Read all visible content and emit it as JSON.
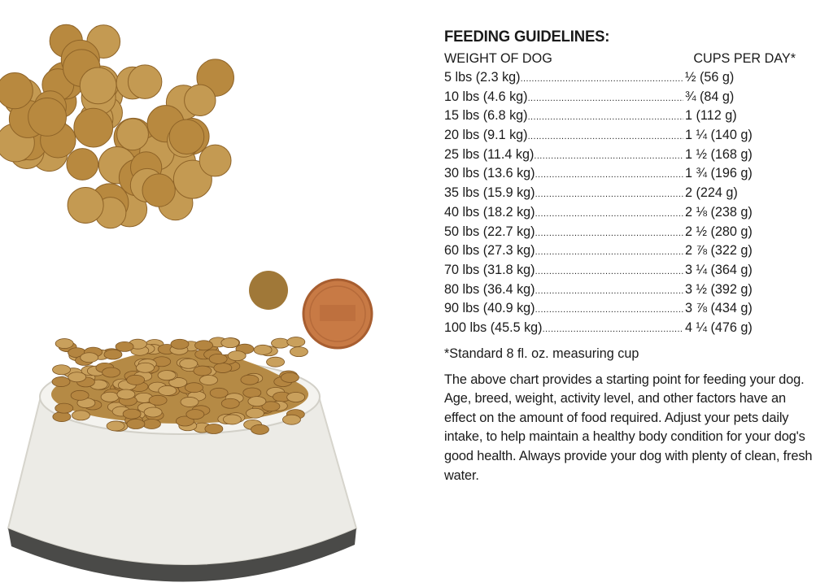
{
  "guidelines": {
    "title": "FEEDING GUIDELINES:",
    "header_weight": "WEIGHT OF DOG",
    "header_cups": "CUPS PER DAY*",
    "rows": [
      {
        "weight": "5 lbs (2.3 kg)",
        "cups": "½ (56 g)"
      },
      {
        "weight": "10 lbs (4.6 kg)",
        "cups": "¾ (84 g)"
      },
      {
        "weight": "15 lbs (6.8 kg)",
        "cups": "1 (112 g)"
      },
      {
        "weight": "20 lbs (9.1 kg)",
        "cups": "1 ¼ (140 g)"
      },
      {
        "weight": "25 lbs (11.4 kg)",
        "cups": "1 ½ (168 g)"
      },
      {
        "weight": "30 lbs (13.6 kg)",
        "cups": "1 ¾ (196 g)"
      },
      {
        "weight": "35 lbs (15.9 kg)",
        "cups": "2 (224 g)"
      },
      {
        "weight": "40 lbs (18.2 kg)",
        "cups": "2 ⅛ (238 g)"
      },
      {
        "weight": "50 lbs (22.7 kg)",
        "cups": "2 ½ (280 g)"
      },
      {
        "weight": "60 lbs (27.3 kg)",
        "cups": "2 ⅞ (322 g)"
      },
      {
        "weight": "70 lbs (31.8 kg)",
        "cups": "3 ¼ (364 g)"
      },
      {
        "weight": "80 lbs (36.4 kg)",
        "cups": "3 ½ (392 g)"
      },
      {
        "weight": "90 lbs (40.9 kg)",
        "cups": "3 ⅞ (434 g)"
      },
      {
        "weight": "100 lbs (45.5 kg)",
        "cups": "4 ¼ (476 g)"
      }
    ],
    "footnote": "*Standard 8 fl. oz. measuring cup",
    "paragraph": "The above chart provides a starting point for feeding your dog. Age, breed, weight, activity level, and other factors have an effect on the amount of food required. Adjust your pets daily intake, to help maintain a healthy body condition for your dog's good health. Always provide your dog with plenty of clean, fresh water."
  },
  "colors": {
    "kibble": "#b8893f",
    "kibble_dark": "#8f6428",
    "bowl": "#ecebe6",
    "penny": "#c87a45"
  }
}
